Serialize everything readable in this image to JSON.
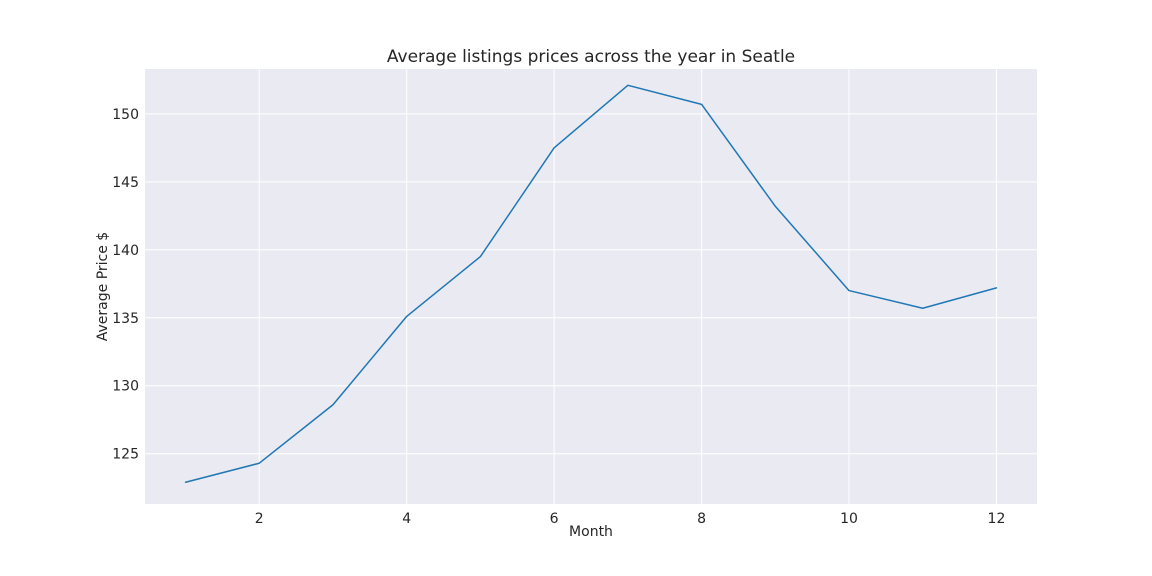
{
  "chart_data": {
    "type": "line",
    "title": "Average listings prices across the year in Seatle",
    "xlabel": "Month",
    "ylabel": "Average Price $",
    "x": [
      1,
      2,
      3,
      4,
      5,
      6,
      7,
      8,
      9,
      10,
      11,
      12
    ],
    "series": [
      {
        "values": [
          122.9,
          124.3,
          128.6,
          135.1,
          139.5,
          147.5,
          152.1,
          150.7,
          143.2,
          137.0,
          135.7,
          137.2
        ]
      }
    ],
    "xticks": [
      2,
      4,
      6,
      8,
      10,
      12
    ],
    "yticks": [
      125,
      130,
      135,
      140,
      145,
      150
    ],
    "xlim": [
      0.45,
      12.55
    ],
    "ylim": [
      121.3,
      153.3
    ],
    "grid": true,
    "colors": {
      "plot_background": "#eaeaf2",
      "grid": "#ffffff",
      "line": "#1f77b4"
    }
  }
}
